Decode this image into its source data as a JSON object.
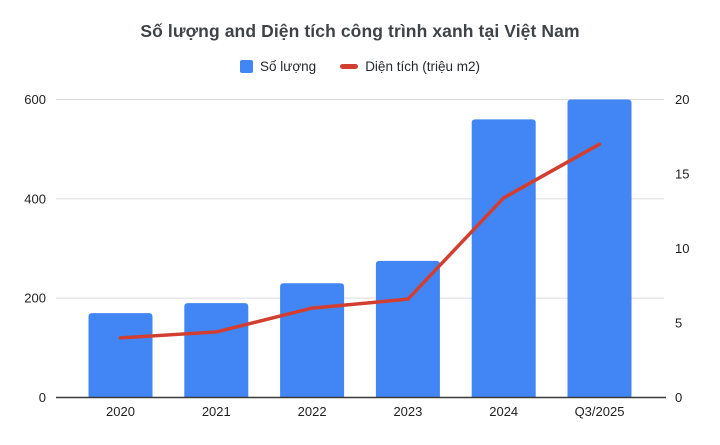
{
  "title": "Số lượng and Diện tích công trình xanh tại Việt Nam",
  "chart_data": {
    "type": "combo-bar-line",
    "categories": [
      "2020",
      "2021",
      "2022",
      "2023",
      "2024",
      "Q3/2025"
    ],
    "series": [
      {
        "name": "Số lượng",
        "type": "bar",
        "axis": "left",
        "color": "#4285f4",
        "values": [
          170,
          190,
          230,
          275,
          560,
          600
        ]
      },
      {
        "name": "Diện tích (triệu m2)",
        "type": "line",
        "axis": "right",
        "color": "#d23f31",
        "values": [
          4,
          4.4,
          6,
          6.6,
          13.4,
          17
        ]
      }
    ],
    "left_axis": {
      "range": [
        0,
        600
      ],
      "ticks": [
        0,
        200,
        400,
        600
      ]
    },
    "right_axis": {
      "range": [
        0,
        20
      ],
      "ticks": [
        0,
        5,
        10,
        15,
        20
      ]
    },
    "grid": true,
    "legend_position": "top",
    "title": "Số lượng and Diện tích công trình xanh tại Việt Nam",
    "colors": {
      "bar": "#4285f4",
      "line": "#d23f31",
      "grid": "#dcdcdc",
      "axis_line": "#3a3a3a",
      "tick_text": "#1f1f1f",
      "title_text": "#3f4347",
      "background": "#ffffff"
    }
  }
}
